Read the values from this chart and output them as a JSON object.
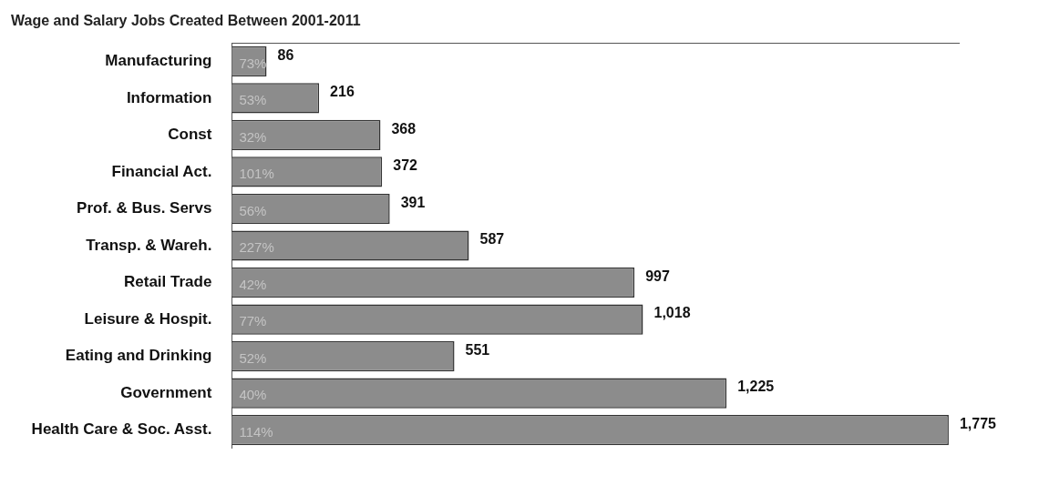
{
  "chart_data": {
    "type": "bar",
    "orientation": "horizontal",
    "title": "Wage and Salary Jobs Created Between 2001-2011",
    "categories": [
      "Manufacturing",
      "Information",
      "Const",
      "Financial Act.",
      "Prof. & Bus. Servs",
      "Transp. & Wareh.",
      "Retail Trade",
      "Leisure & Hospit.",
      "Eating and Drinking",
      "Government",
      "Health Care & Soc. Asst."
    ],
    "values": [
      86,
      216,
      368,
      372,
      391,
      587,
      997,
      1018,
      551,
      1225,
      1775
    ],
    "value_labels": [
      "86",
      "216",
      "368",
      "372",
      "391",
      "587",
      "997",
      "1,018",
      "551",
      "1,225",
      "1,775"
    ],
    "annotations": [
      {
        "text": "73%",
        "y": "Manufacturing"
      },
      {
        "text": "53%",
        "y": "Information"
      },
      {
        "text": "32%",
        "y": "Const"
      },
      {
        "text": "101%",
        "y": "Financial Act."
      },
      {
        "text": "56%",
        "y": "Prof. & Bus. Servs"
      },
      {
        "text": "227%",
        "y": "Transp. & Wareh."
      },
      {
        "text": "42%",
        "y": "Retail Trade"
      },
      {
        "text": "77%",
        "y": "Leisure & Hospit."
      },
      {
        "text": "52%",
        "y": "Eating and Drinking"
      },
      {
        "text": "40%",
        "y": "Government"
      },
      {
        "text": "114%",
        "y": "Health Care & Soc. Asst."
      }
    ],
    "color": "#8c8c8c"
  }
}
